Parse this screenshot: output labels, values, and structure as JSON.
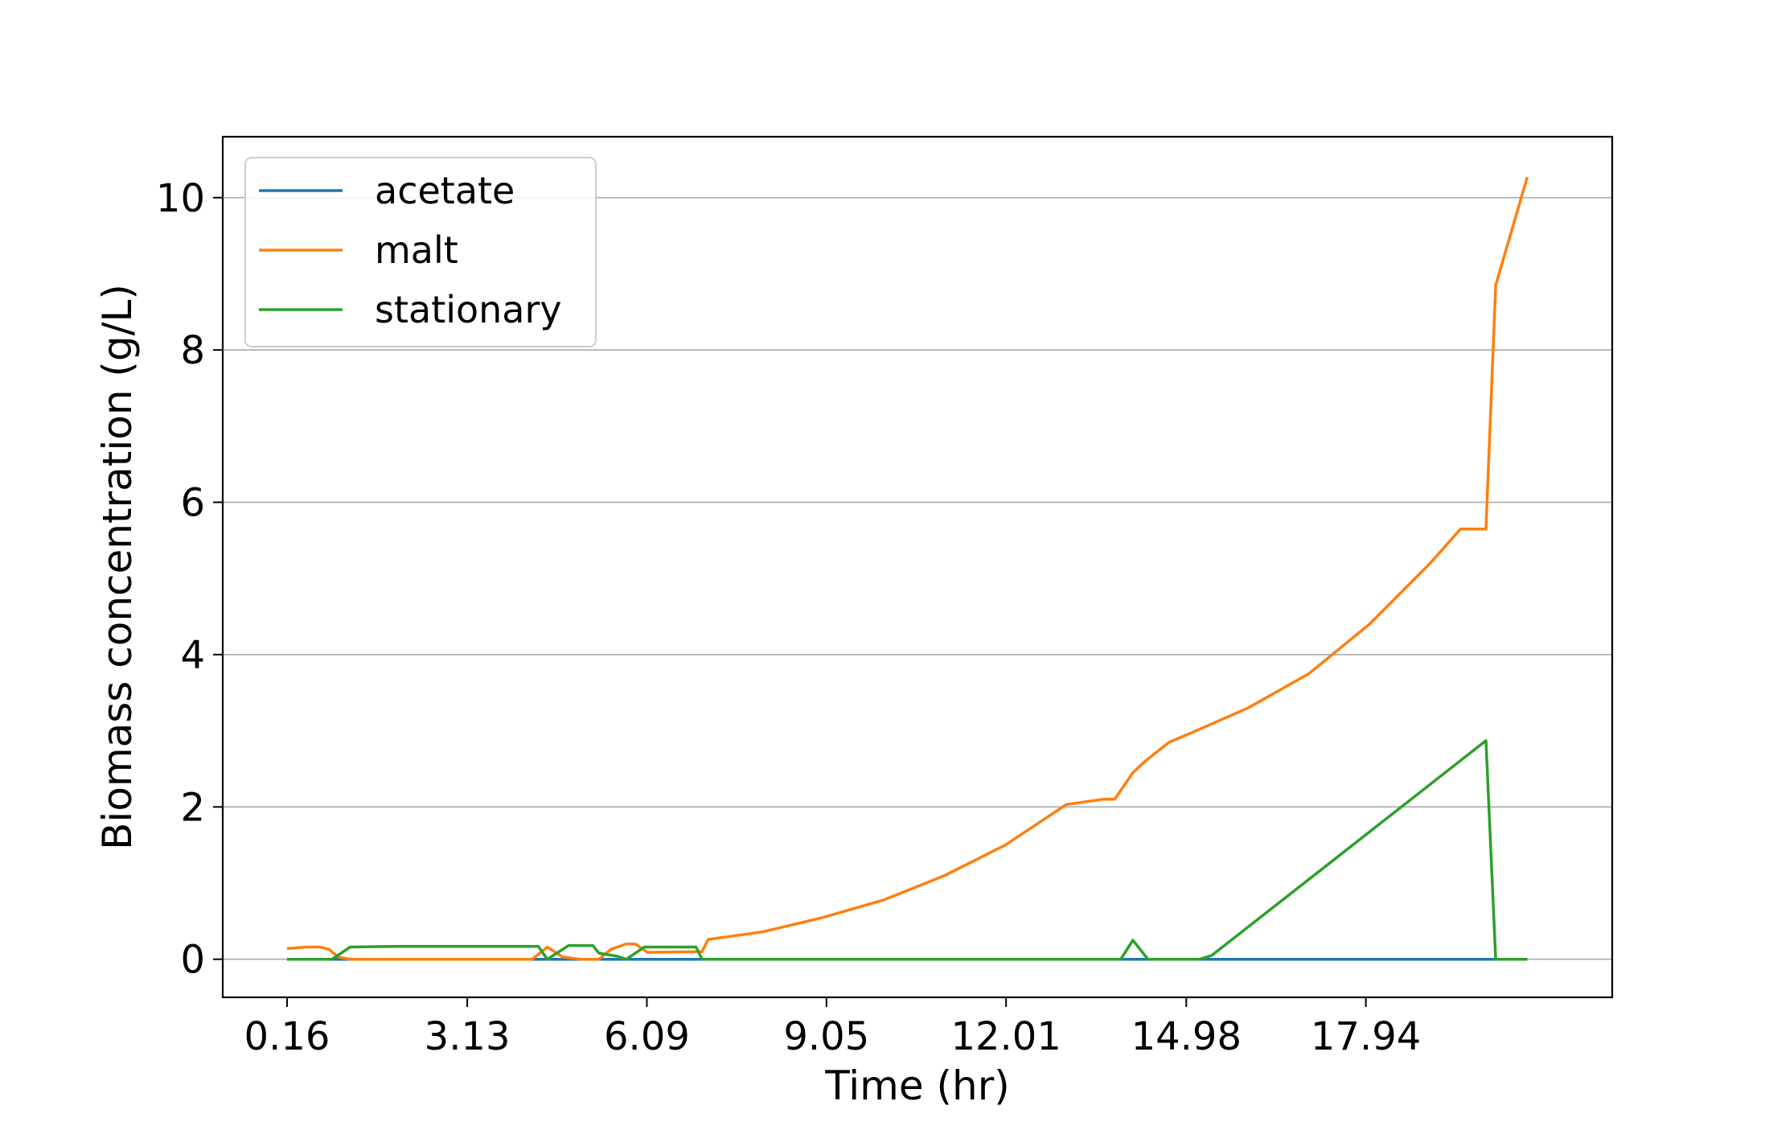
{
  "chart_data": {
    "type": "line",
    "xlabel": "Time (hr)",
    "ylabel": "Biomass concentration (g/L)",
    "xlim": [
      -0.9,
      22.0
    ],
    "ylim": [
      -0.5,
      10.8
    ],
    "x_ticks": [
      0.16,
      3.13,
      6.09,
      9.05,
      12.01,
      14.98,
      17.94
    ],
    "x_tick_labels": [
      "0.16",
      "3.13",
      "6.09",
      "9.05",
      "12.01",
      "14.98",
      "17.94"
    ],
    "y_ticks": [
      0,
      2,
      4,
      6,
      8,
      10
    ],
    "y_tick_labels": [
      "0",
      "2",
      "4",
      "6",
      "8",
      "10"
    ],
    "grid": "horizontal",
    "legend_position": "top-left",
    "series": [
      {
        "name": "acetate",
        "color": "#1f77b4",
        "x": [
          0.16,
          20.6
        ],
        "y": [
          0,
          0
        ]
      },
      {
        "name": "malt",
        "color": "#ff7f0e",
        "x": [
          0.16,
          0.5,
          0.7,
          0.85,
          1.0,
          1.2,
          2.0,
          4.0,
          4.2,
          4.45,
          4.7,
          5.0,
          5.3,
          5.5,
          5.75,
          5.9,
          6.1,
          7.0,
          7.1,
          8.0,
          9.0,
          10.0,
          11.0,
          12.0,
          13.0,
          13.6,
          13.8,
          14.1,
          14.3,
          14.7,
          15.0,
          16.0,
          17.0,
          18.0,
          19.0,
          19.5,
          19.92,
          20.08,
          20.6
        ],
        "y": [
          0.14,
          0.16,
          0.16,
          0.13,
          0.03,
          0.0,
          0.0,
          0.0,
          0.0,
          0.16,
          0.03,
          0.0,
          0.0,
          0.13,
          0.2,
          0.2,
          0.09,
          0.1,
          0.26,
          0.36,
          0.55,
          0.78,
          1.1,
          1.5,
          2.03,
          2.1,
          2.1,
          2.45,
          2.6,
          2.85,
          2.95,
          3.3,
          3.75,
          4.4,
          5.2,
          5.65,
          5.65,
          8.85,
          10.27
        ]
      },
      {
        "name": "stationary",
        "color": "#2ca02c",
        "x": [
          0.16,
          0.9,
          1.2,
          2.0,
          3.0,
          4.0,
          4.3,
          4.45,
          4.8,
          5.2,
          5.3,
          5.6,
          5.75,
          6.05,
          6.2,
          6.9,
          7.0,
          12.5,
          13.9,
          14.1,
          14.35,
          14.5,
          15.2,
          15.4,
          19.92,
          20.08,
          20.6
        ],
        "y": [
          0,
          0,
          0.16,
          0.17,
          0.17,
          0.17,
          0.17,
          0.0,
          0.18,
          0.18,
          0.08,
          0.04,
          0.0,
          0.16,
          0.16,
          0.16,
          0.0,
          0.0,
          0.0,
          0.25,
          0.0,
          0.0,
          0.0,
          0.05,
          2.87,
          0.0,
          0.0
        ]
      }
    ]
  }
}
